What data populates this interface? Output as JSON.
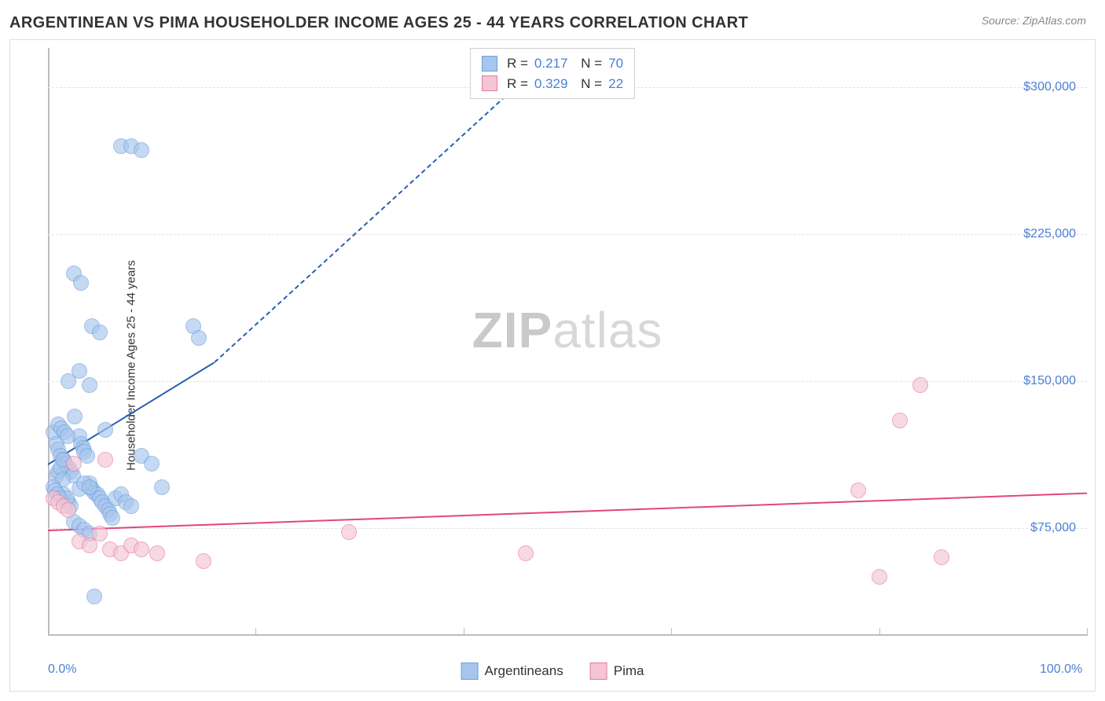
{
  "title": "ARGENTINEAN VS PIMA HOUSEHOLDER INCOME AGES 25 - 44 YEARS CORRELATION CHART",
  "source": "Source: ZipAtlas.com",
  "watermark": {
    "zip": "ZIP",
    "atlas": "atlas"
  },
  "chart": {
    "type": "scatter",
    "y_label": "Householder Income Ages 25 - 44 years",
    "background_color": "#ffffff",
    "grid_color": "#e2e2e2",
    "axis_color": "#bdbdbd",
    "tick_label_color": "#4a7fd8",
    "title_fontsize": 20,
    "label_fontsize": 15,
    "tick_fontsize": 16,
    "xlim": [
      0,
      100
    ],
    "ylim": [
      20000,
      320000
    ],
    "y_ticks": [
      {
        "value": 75000,
        "label": "$75,000"
      },
      {
        "value": 150000,
        "label": "$150,000"
      },
      {
        "value": 225000,
        "label": "$225,000"
      },
      {
        "value": 300000,
        "label": "$300,000"
      }
    ],
    "x_ticks": [
      {
        "value": 0,
        "label": "0.0%"
      },
      {
        "value": 20,
        "label": ""
      },
      {
        "value": 40,
        "label": ""
      },
      {
        "value": 60,
        "label": ""
      },
      {
        "value": 80,
        "label": ""
      },
      {
        "value": 100,
        "label": "100.0%"
      }
    ],
    "series": [
      {
        "name": "Argentineans",
        "fill_color": "#a7c6ee",
        "stroke_color": "#6f9fd8",
        "trend_color": "#2b5fb3",
        "marker_radius": 10,
        "fill_opacity": 0.65,
        "R": "0.217",
        "N": "70",
        "trend": {
          "x1": 0,
          "y1": 108000,
          "x2": 16,
          "y2": 160000,
          "dashed_to_x": 49,
          "dashed_to_y": 320000
        },
        "points": [
          [
            0.5,
            124000
          ],
          [
            0.8,
            118000
          ],
          [
            1.0,
            115000
          ],
          [
            1.2,
            112000
          ],
          [
            1.5,
            110000
          ],
          [
            1.7,
            108000
          ],
          [
            2.0,
            106000
          ],
          [
            2.2,
            104000
          ],
          [
            2.4,
            102000
          ],
          [
            2.6,
            132000
          ],
          [
            3.0,
            122000
          ],
          [
            3.2,
            118000
          ],
          [
            3.4,
            116000
          ],
          [
            3.5,
            114000
          ],
          [
            3.8,
            112000
          ],
          [
            4.0,
            98000
          ],
          [
            4.2,
            95000
          ],
          [
            4.5,
            93000
          ],
          [
            4.8,
            92000
          ],
          [
            5.0,
            90000
          ],
          [
            5.2,
            88000
          ],
          [
            5.5,
            86000
          ],
          [
            5.8,
            84000
          ],
          [
            6.0,
            82000
          ],
          [
            6.2,
            80000
          ],
          [
            2.0,
            150000
          ],
          [
            3.0,
            155000
          ],
          [
            4.0,
            148000
          ],
          [
            2.5,
            205000
          ],
          [
            3.2,
            200000
          ],
          [
            4.2,
            178000
          ],
          [
            5.0,
            175000
          ],
          [
            14.0,
            178000
          ],
          [
            14.5,
            172000
          ],
          [
            7.0,
            270000
          ],
          [
            8.0,
            270000
          ],
          [
            9.0,
            268000
          ],
          [
            4.5,
            40000
          ],
          [
            3.0,
            95000
          ],
          [
            3.5,
            98000
          ],
          [
            4.0,
            96000
          ],
          [
            6.5,
            90000
          ],
          [
            7.0,
            92000
          ],
          [
            7.5,
            88000
          ],
          [
            8.0,
            86000
          ],
          [
            9.0,
            112000
          ],
          [
            10.0,
            108000
          ],
          [
            11.0,
            96000
          ],
          [
            5.5,
            125000
          ],
          [
            2.0,
            88000
          ],
          [
            2.2,
            86000
          ],
          [
            1.5,
            92000
          ],
          [
            1.8,
            90000
          ],
          [
            0.8,
            102000
          ],
          [
            1.0,
            104000
          ],
          [
            1.2,
            106000
          ],
          [
            1.4,
            100000
          ],
          [
            2.5,
            78000
          ],
          [
            3.0,
            76000
          ],
          [
            3.5,
            74000
          ],
          [
            4.0,
            72000
          ],
          [
            1.0,
            128000
          ],
          [
            1.3,
            126000
          ],
          [
            1.6,
            124000
          ],
          [
            1.9,
            122000
          ],
          [
            0.5,
            96000
          ],
          [
            0.7,
            94000
          ],
          [
            0.9,
            92000
          ],
          [
            1.1,
            90000
          ],
          [
            1.4,
            110000
          ]
        ]
      },
      {
        "name": "Pima",
        "fill_color": "#f4c5d4",
        "stroke_color": "#e77ba0",
        "trend_color": "#e3447f",
        "marker_radius": 10,
        "fill_opacity": 0.65,
        "R": "0.329",
        "N": "22",
        "trend": {
          "x1": 0,
          "y1": 74000,
          "x2": 100,
          "y2": 93000
        },
        "points": [
          [
            0.5,
            90000
          ],
          [
            1.0,
            88000
          ],
          [
            1.5,
            86000
          ],
          [
            2.0,
            84000
          ],
          [
            3.0,
            68000
          ],
          [
            4.0,
            66000
          ],
          [
            5.0,
            72000
          ],
          [
            6.0,
            64000
          ],
          [
            7.0,
            62000
          ],
          [
            8.0,
            66000
          ],
          [
            9.0,
            64000
          ],
          [
            10.5,
            62000
          ],
          [
            15.0,
            58000
          ],
          [
            29.0,
            73000
          ],
          [
            46.0,
            62000
          ],
          [
            78.0,
            94000
          ],
          [
            80.0,
            50000
          ],
          [
            82.0,
            130000
          ],
          [
            84.0,
            148000
          ],
          [
            86.0,
            60000
          ],
          [
            5.5,
            110000
          ],
          [
            2.5,
            108000
          ]
        ]
      }
    ]
  },
  "legend": [
    {
      "label": "Argentineans",
      "fill": "#a7c6ee",
      "stroke": "#6f9fd8"
    },
    {
      "label": "Pima",
      "fill": "#f4c5d4",
      "stroke": "#e77ba0"
    }
  ]
}
